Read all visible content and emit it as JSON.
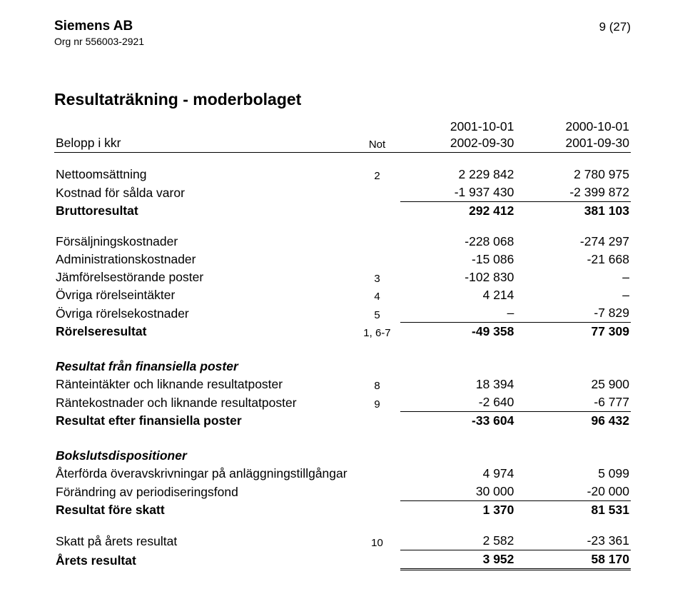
{
  "header": {
    "company": "Siemens AB",
    "org_no": "Org nr 556003-2921",
    "page_no": "9 (27)"
  },
  "title": "Resultaträkning - moderbolaget",
  "col_header": {
    "label": "Belopp i kkr",
    "note_label": "Not",
    "period1_top": "2001-10-01",
    "period1_bot": "2002-09-30",
    "period2_top": "2000-10-01",
    "period2_bot": "2001-09-30"
  },
  "rows": [
    {
      "label": "Nettoomsättning",
      "bold": false,
      "note": "2",
      "c1": "2 229 842",
      "c2": "2 780 975"
    },
    {
      "label": "Kostnad för sålda varor",
      "c1": "-1 937 430",
      "c2": "-2 399 872"
    },
    {
      "label": "Bruttoresultat",
      "bold": true,
      "c1": "292 412",
      "c2": "381 103",
      "sum": true
    },
    {
      "spacer": true
    },
    {
      "label": "Försäljningskostnader",
      "c1": "-228 068",
      "c2": "-274 297"
    },
    {
      "label": "Administrationskostnader",
      "c1": "-15 086",
      "c2": "-21 668"
    },
    {
      "label": "Jämförelsestörande poster",
      "note": "3",
      "c1": "-102 830",
      "c2": "–"
    },
    {
      "label": "Övriga rörelseintäkter",
      "note": "4",
      "c1": "4 214",
      "c2": "–"
    },
    {
      "label": "Övriga rörelsekostnader",
      "note": "5",
      "c1": "–",
      "c2": "-7 829"
    },
    {
      "label": "Rörelseresultat",
      "bold": true,
      "note": "1, 6-7",
      "c1": "-49 358",
      "c2": "77 309",
      "sum": true
    },
    {
      "spacer": "lg"
    },
    {
      "label": "Resultat från finansiella poster",
      "bold": true,
      "italic": true,
      "labelonly": true
    },
    {
      "label": "Ränteintäkter och liknande resultatposter",
      "note": "8",
      "c1": "18 394",
      "c2": "25 900"
    },
    {
      "label": "Räntekostnader och liknande resultatposter",
      "note": "9",
      "c1": "-2 640",
      "c2": "-6 777"
    },
    {
      "label": "Resultat efter finansiella poster",
      "bold": true,
      "c1": "-33 604",
      "c2": "96 432",
      "sum": true
    },
    {
      "spacer": "lg"
    },
    {
      "label": "Bokslutsdispositioner",
      "bold": true,
      "italic": true,
      "labelonly": true
    },
    {
      "label": "Återförda överavskrivningar på anläggningstillgångar",
      "c1": "4 974",
      "c2": "5 099"
    },
    {
      "label": "Förändring av periodiseringsfond",
      "c1": "30 000",
      "c2": "-20 000"
    },
    {
      "label": "Resultat före skatt",
      "bold": true,
      "c1": "1 370",
      "c2": "81 531",
      "sum": true
    },
    {
      "spacer": true
    },
    {
      "label": "Skatt på årets resultat",
      "note": "10",
      "c1": "2 582",
      "c2": "-23 361"
    },
    {
      "label": "Årets resultat",
      "bold": true,
      "c1": "3 952",
      "c2": "58 170",
      "sum": true,
      "dbl": true
    }
  ]
}
